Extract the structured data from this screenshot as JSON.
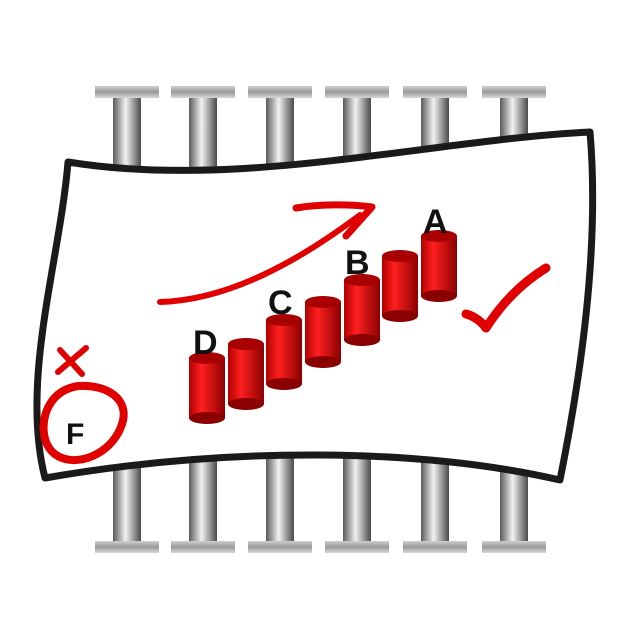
{
  "grades": {
    "a": "A",
    "b": "B",
    "c": "C",
    "d": "D",
    "f": "F"
  },
  "icons": [
    "x-mark-icon",
    "check-mark-icon",
    "trend-arrow-icon"
  ],
  "colors": {
    "accent": "#e00000",
    "bar_dark": "#a80000",
    "frame": "#1a1a1a",
    "pillar": "#8a8a8a"
  }
}
